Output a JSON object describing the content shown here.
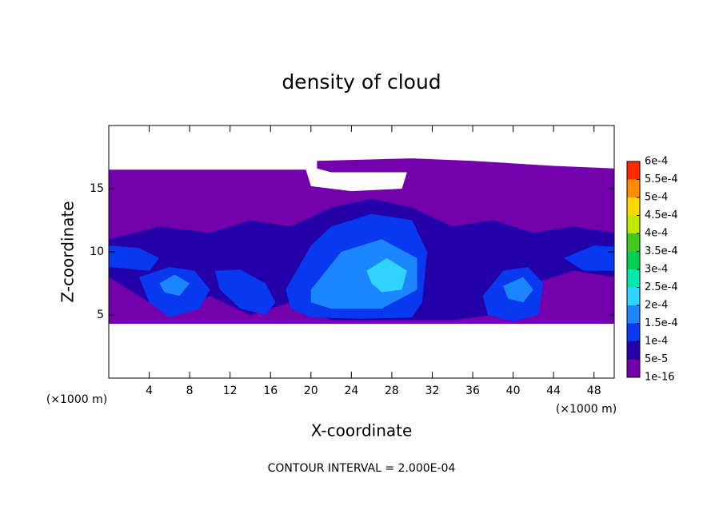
{
  "chart_data": {
    "type": "contour",
    "title": "density of cloud",
    "x_label": "X-coordinate",
    "y_label": "Z-coordinate",
    "x_unit": "(×1000 m)",
    "y_unit": "(×1000 m)",
    "footer": "CONTOUR INTERVAL = 2.000E-04",
    "xlim": [
      0,
      50
    ],
    "ylim": [
      0,
      20
    ],
    "xticks": [
      4,
      8,
      12,
      16,
      20,
      24,
      28,
      32,
      36,
      40,
      44,
      48
    ],
    "yticks": [
      5,
      10,
      15
    ],
    "colorbar": {
      "levels": [
        {
          "value": 1e-16,
          "label": "1e-16"
        },
        {
          "value": 5e-05,
          "label": "5e-5"
        },
        {
          "value": 0.0001,
          "label": "1e-4"
        },
        {
          "value": 0.00015,
          "label": "1.5e-4"
        },
        {
          "value": 0.0002,
          "label": "2e-4"
        },
        {
          "value": 0.00025,
          "label": "2.5e-4"
        },
        {
          "value": 0.0003,
          "label": "3e-4"
        },
        {
          "value": 0.00035,
          "label": "3.5e-4"
        },
        {
          "value": 0.0004,
          "label": "4e-4"
        },
        {
          "value": 0.00045,
          "label": "4.5e-4"
        },
        {
          "value": 0.0005,
          "label": "5e-4"
        },
        {
          "value": 0.00055,
          "label": "5.5e-4"
        },
        {
          "value": 0.0006,
          "label": "6e-4"
        }
      ],
      "colors": [
        "#7400ac",
        "#2400a8",
        "#0838f0",
        "#1c86ff",
        "#30d4ff",
        "#00e8b0",
        "#00d050",
        "#40c820",
        "#c0e800",
        "#ffd800",
        "#ff8c00",
        "#ff2a00"
      ]
    },
    "regions": [
      {
        "level": 1e-16,
        "x": [
          0,
          19.5,
          20,
          24,
          29,
          29.5,
          22,
          20.6,
          20.6,
          30,
          36,
          44,
          50,
          50,
          0
        ],
        "z": [
          16.5,
          16.5,
          15.2,
          14.8,
          15,
          16.3,
          16.3,
          16.6,
          17.2,
          17.4,
          17.2,
          16.8,
          16.6,
          4.3,
          4.3
        ]
      },
      {
        "level": 5e-05,
        "x": [
          0,
          5,
          10,
          14,
          18,
          22,
          26,
          30,
          34,
          38,
          42,
          46,
          50,
          50,
          46,
          42,
          38,
          34,
          30,
          22,
          18,
          14,
          10,
          6,
          0
        ],
        "z": [
          11,
          12,
          11.5,
          12.5,
          12,
          13.5,
          14.2,
          13.5,
          12,
          12.5,
          11.5,
          12,
          11.5,
          8,
          8.5,
          7.5,
          5,
          4.6,
          4.6,
          4.6,
          6,
          5,
          6.5,
          5,
          8
        ]
      },
      {
        "level": 0.0001,
        "x": [
          0,
          3,
          5,
          4,
          0
        ],
        "z": [
          10.5,
          10.3,
          9.5,
          8.5,
          8.8
        ]
      },
      {
        "level": 0.0001,
        "x": [
          3,
          6,
          8.5,
          10,
          9,
          6,
          4
        ],
        "z": [
          8,
          8.8,
          8.5,
          7,
          5.5,
          4.8,
          6
        ]
      },
      {
        "level": 0.0001,
        "x": [
          10.5,
          13,
          15.5,
          16.5,
          15.5,
          13,
          11
        ],
        "z": [
          8.5,
          8.6,
          7.5,
          6,
          5,
          5.5,
          7
        ]
      },
      {
        "level": 0.0001,
        "x": [
          17.5,
          20,
          22,
          26,
          30,
          31.5,
          31,
          30,
          25,
          20,
          18
        ],
        "z": [
          7,
          10.5,
          12,
          13,
          12.5,
          10,
          6,
          4.8,
          4.7,
          4.8,
          5.5
        ]
      },
      {
        "level": 0.0001,
        "x": [
          37,
          39,
          41.5,
          43,
          42.5,
          40,
          37.5
        ],
        "z": [
          6.5,
          8.5,
          8.8,
          7.5,
          5,
          4.5,
          5
        ]
      },
      {
        "level": 0.0001,
        "x": [
          45,
          48,
          50,
          50,
          47
        ],
        "z": [
          9.5,
          10.5,
          10.4,
          8.5,
          8.5
        ]
      },
      {
        "level": 0.00015,
        "x": [
          20,
          23,
          27,
          30.5,
          30.5,
          27,
          22,
          20
        ],
        "z": [
          7,
          10,
          11,
          9.5,
          7,
          5.5,
          5.5,
          6
        ]
      },
      {
        "level": 0.00015,
        "x": [
          5,
          6.5,
          8,
          7,
          5.5
        ],
        "z": [
          7.5,
          8.2,
          7.5,
          6.5,
          6.8
        ]
      },
      {
        "level": 0.00015,
        "x": [
          39,
          41,
          42,
          41,
          39.5
        ],
        "z": [
          7.3,
          8,
          7,
          6,
          6.3
        ]
      },
      {
        "level": 0.0002,
        "x": [
          25.5,
          27.5,
          29.5,
          29,
          27,
          26
        ],
        "z": [
          8.5,
          9.5,
          8.5,
          7,
          6.8,
          7.5
        ]
      }
    ]
  }
}
